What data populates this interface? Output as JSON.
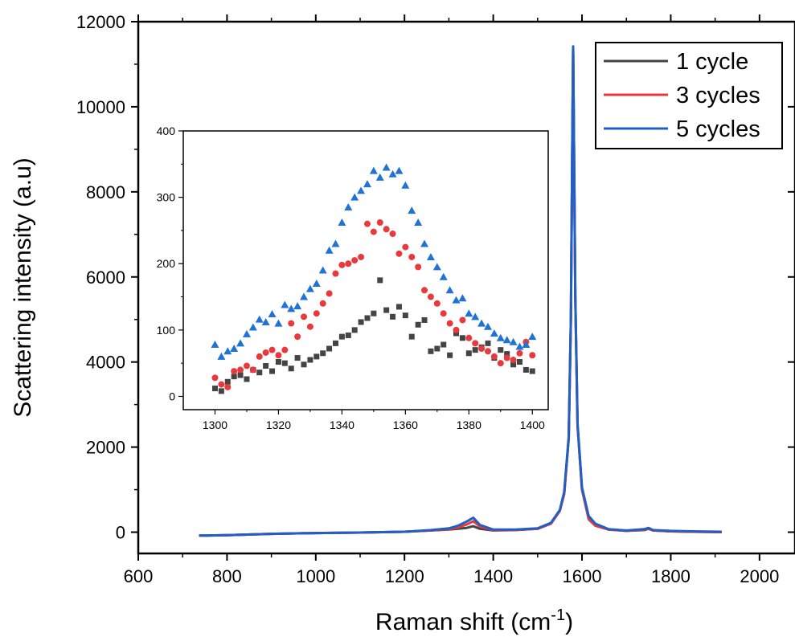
{
  "chart_data": [
    {
      "type": "line",
      "xlabel": "Raman shift (cm",
      "xlabel_sup": "-1",
      "xlabel_end": ")",
      "ylabel": "Scattering intensity (a.u)",
      "xlim": [
        600,
        2080
      ],
      "ylim": [
        -500,
        12000
      ],
      "xticks": [
        600,
        800,
        1000,
        1200,
        1400,
        1600,
        1800,
        2000
      ],
      "yticks": [
        0,
        2000,
        4000,
        6000,
        8000,
        10000,
        12000
      ],
      "legend_position": "top-right",
      "series": [
        {
          "name": "1 cycle",
          "color": "#444444",
          "x": [
            737,
            800,
            900,
            1000,
            1100,
            1200,
            1260,
            1300,
            1320,
            1340,
            1355,
            1370,
            1400,
            1450,
            1500,
            1530,
            1550,
            1560,
            1570,
            1575,
            1578,
            1580,
            1582,
            1585,
            1590,
            1600,
            1615,
            1630,
            1660,
            1700,
            1740,
            1750,
            1760,
            1800,
            1850,
            1915
          ],
          "y": [
            -80,
            -70,
            -40,
            -20,
            -10,
            10,
            40,
            60,
            80,
            100,
            140,
            80,
            40,
            50,
            80,
            200,
            500,
            900,
            2200,
            5000,
            9000,
            11400,
            9000,
            5500,
            2500,
            1000,
            350,
            180,
            60,
            30,
            50,
            80,
            40,
            20,
            10,
            0
          ]
        },
        {
          "name": "3 cycles",
          "color": "#e8393c",
          "x": [
            737,
            800,
            900,
            1000,
            1100,
            1200,
            1260,
            1300,
            1320,
            1340,
            1355,
            1370,
            1400,
            1450,
            1500,
            1530,
            1550,
            1560,
            1570,
            1575,
            1578,
            1580,
            1582,
            1585,
            1590,
            1600,
            1615,
            1630,
            1660,
            1700,
            1740,
            1750,
            1760,
            1800,
            1850,
            1915
          ],
          "y": [
            -80,
            -70,
            -40,
            -20,
            -10,
            10,
            40,
            70,
            110,
            180,
            260,
            130,
            50,
            50,
            80,
            200,
            500,
            900,
            2200,
            5000,
            9000,
            11400,
            9000,
            5500,
            2500,
            1000,
            300,
            150,
            60,
            30,
            60,
            90,
            40,
            20,
            10,
            0
          ]
        },
        {
          "name": "5 cycles",
          "color": "#1f5fc6",
          "x": [
            737,
            800,
            900,
            1000,
            1100,
            1200,
            1260,
            1300,
            1320,
            1340,
            1355,
            1370,
            1400,
            1450,
            1500,
            1530,
            1550,
            1560,
            1570,
            1575,
            1578,
            1580,
            1582,
            1585,
            1590,
            1600,
            1615,
            1630,
            1660,
            1700,
            1740,
            1750,
            1760,
            1800,
            1850,
            1915
          ],
          "y": [
            -80,
            -70,
            -40,
            -20,
            -10,
            10,
            50,
            90,
            150,
            250,
            340,
            170,
            60,
            60,
            90,
            220,
            520,
            950,
            2250,
            5050,
            9050,
            11420,
            9050,
            5550,
            2550,
            1050,
            380,
            200,
            70,
            40,
            70,
            100,
            50,
            30,
            20,
            10
          ]
        }
      ]
    },
    {
      "type": "scatter",
      "xlim": [
        1290,
        1405
      ],
      "ylim": [
        -20,
        400
      ],
      "xticks": [
        1300,
        1320,
        1340,
        1360,
        1380,
        1400
      ],
      "yticks": [
        0,
        100,
        200,
        300,
        400
      ],
      "series": [
        {
          "name": "1 cycle",
          "color": "#444444",
          "marker": "square",
          "x": [
            1300,
            1302,
            1304,
            1306,
            1308,
            1310,
            1312,
            1314,
            1316,
            1318,
            1320,
            1322,
            1324,
            1326,
            1328,
            1330,
            1332,
            1334,
            1336,
            1338,
            1340,
            1342,
            1344,
            1346,
            1348,
            1350,
            1352,
            1354,
            1356,
            1358,
            1360,
            1362,
            1364,
            1366,
            1368,
            1370,
            1372,
            1374,
            1376,
            1378,
            1380,
            1382,
            1384,
            1386,
            1388,
            1390,
            1392,
            1394,
            1396,
            1398,
            1400
          ],
          "y": [
            12,
            8,
            22,
            30,
            32,
            26,
            40,
            36,
            46,
            38,
            52,
            50,
            42,
            58,
            48,
            55,
            60,
            65,
            72,
            80,
            90,
            92,
            100,
            112,
            118,
            125,
            175,
            130,
            120,
            135,
            122,
            90,
            108,
            115,
            68,
            72,
            78,
            62,
            95,
            88,
            65,
            70,
            74,
            80,
            58,
            70,
            64,
            48,
            52,
            40,
            38
          ]
        },
        {
          "name": "3 cycles",
          "color": "#e8393c",
          "marker": "circle",
          "x": [
            1300,
            1302,
            1304,
            1306,
            1308,
            1310,
            1312,
            1314,
            1316,
            1318,
            1320,
            1322,
            1324,
            1326,
            1328,
            1330,
            1332,
            1334,
            1336,
            1338,
            1340,
            1342,
            1344,
            1346,
            1348,
            1350,
            1352,
            1354,
            1356,
            1358,
            1360,
            1362,
            1364,
            1366,
            1368,
            1370,
            1372,
            1374,
            1376,
            1378,
            1380,
            1382,
            1384,
            1386,
            1388,
            1390,
            1392,
            1394,
            1396,
            1398,
            1400
          ],
          "y": [
            28,
            18,
            14,
            38,
            40,
            46,
            40,
            60,
            66,
            70,
            62,
            70,
            110,
            90,
            120,
            105,
            125,
            140,
            155,
            185,
            198,
            200,
            205,
            210,
            260,
            248,
            262,
            252,
            245,
            215,
            225,
            210,
            195,
            160,
            150,
            140,
            125,
            110,
            100,
            115,
            88,
            80,
            72,
            68,
            60,
            50,
            58,
            55,
            65,
            82,
            62
          ]
        },
        {
          "name": "5 cycles",
          "color": "#1f73d6",
          "marker": "triangle",
          "x": [
            1300,
            1302,
            1304,
            1306,
            1308,
            1310,
            1312,
            1314,
            1316,
            1318,
            1320,
            1322,
            1324,
            1326,
            1328,
            1330,
            1332,
            1334,
            1336,
            1338,
            1340,
            1342,
            1344,
            1346,
            1348,
            1350,
            1352,
            1354,
            1356,
            1358,
            1360,
            1362,
            1364,
            1366,
            1368,
            1370,
            1372,
            1374,
            1376,
            1378,
            1380,
            1382,
            1384,
            1386,
            1388,
            1390,
            1392,
            1394,
            1396,
            1398,
            1400
          ],
          "y": [
            78,
            60,
            68,
            72,
            80,
            94,
            104,
            116,
            112,
            124,
            110,
            138,
            132,
            136,
            150,
            162,
            170,
            190,
            220,
            230,
            262,
            285,
            300,
            310,
            320,
            340,
            330,
            345,
            335,
            340,
            318,
            280,
            262,
            230,
            210,
            195,
            180,
            160,
            145,
            148,
            125,
            120,
            110,
            105,
            95,
            88,
            85,
            82,
            75,
            78,
            90
          ]
        }
      ]
    }
  ]
}
